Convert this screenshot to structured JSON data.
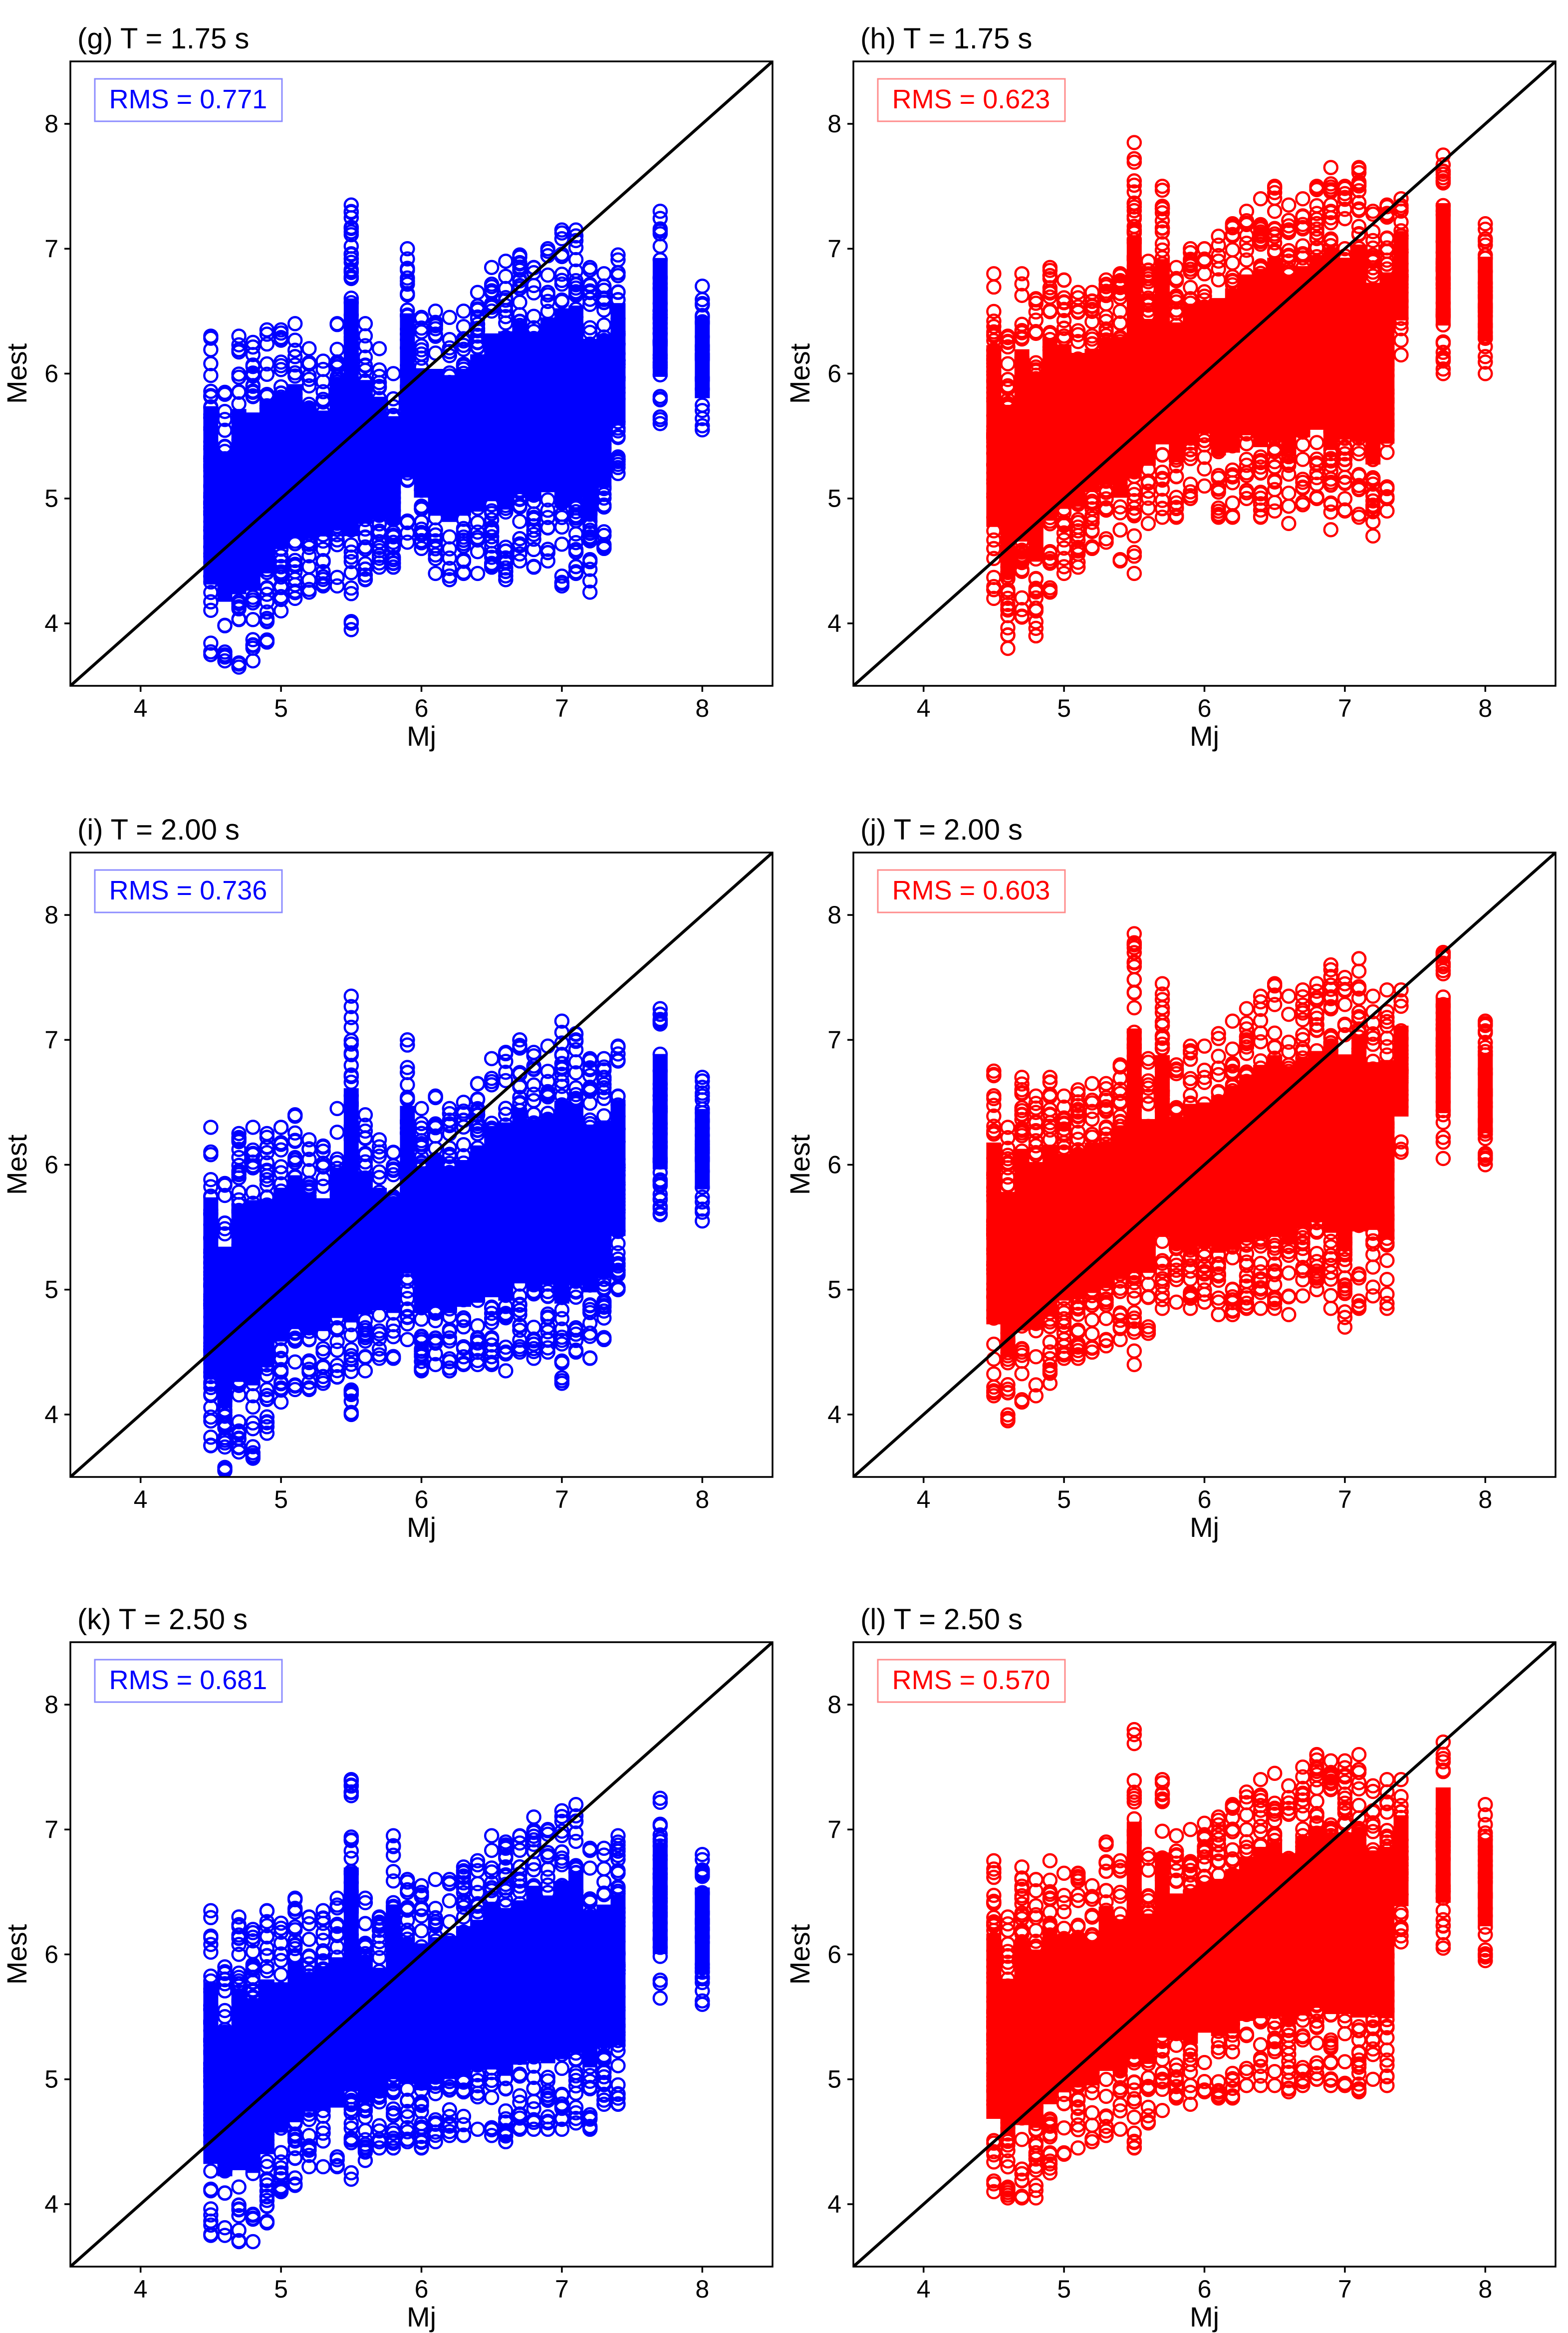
{
  "chart_data": [
    {
      "type": "scatter",
      "title": "(g) T = 1.75 s",
      "xlabel": "Mj",
      "ylabel": "Mest",
      "xlim": [
        3.5,
        8.5
      ],
      "ylim": [
        3.5,
        8.5
      ],
      "xticks": [
        4,
        5,
        6,
        7,
        8
      ],
      "yticks": [
        4,
        5,
        6,
        7,
        8
      ],
      "annotation": "RMS = 0.771",
      "color": "#0000ff",
      "reference_line": {
        "x": [
          3.5,
          8.5
        ],
        "y": [
          3.5,
          8.5
        ]
      },
      "x": [
        4.5,
        4.6,
        4.7,
        4.8,
        4.9,
        5.0,
        5.1,
        5.2,
        5.3,
        5.4,
        5.5,
        5.6,
        5.7,
        5.8,
        5.9,
        6.0,
        6.1,
        6.2,
        6.3,
        6.4,
        6.5,
        6.6,
        6.7,
        6.8,
        6.9,
        7.0,
        7.1,
        7.2,
        7.3,
        7.4,
        7.7,
        8.0
      ],
      "y_min": [
        3.75,
        3.7,
        3.65,
        3.7,
        3.85,
        4.1,
        4.2,
        4.25,
        4.3,
        4.3,
        3.95,
        4.35,
        4.45,
        4.45,
        4.65,
        4.6,
        4.4,
        4.35,
        4.4,
        4.4,
        4.45,
        4.35,
        4.5,
        4.45,
        4.5,
        4.3,
        4.4,
        4.25,
        4.6,
        5.2,
        5.6,
        5.55
      ],
      "y_max": [
        6.3,
        5.85,
        6.3,
        6.25,
        6.35,
        6.35,
        6.4,
        6.2,
        6.1,
        6.4,
        7.35,
        6.4,
        6.2,
        6.0,
        7.0,
        6.45,
        6.5,
        6.45,
        6.5,
        6.65,
        6.85,
        6.9,
        6.95,
        6.85,
        7.0,
        7.15,
        7.15,
        6.85,
        6.8,
        6.95,
        7.3,
        6.7
      ]
    },
    {
      "type": "scatter",
      "title": "(h) T = 1.75 s",
      "xlabel": "Mj",
      "ylabel": "Mest",
      "xlim": [
        3.5,
        8.5
      ],
      "ylim": [
        3.5,
        8.5
      ],
      "xticks": [
        4,
        5,
        6,
        7,
        8
      ],
      "yticks": [
        4,
        5,
        6,
        7,
        8
      ],
      "annotation": "RMS = 0.623",
      "color": "#ff0000",
      "reference_line": {
        "x": [
          3.5,
          8.5
        ],
        "y": [
          3.5,
          8.5
        ]
      },
      "x": [
        4.5,
        4.6,
        4.7,
        4.8,
        4.9,
        5.0,
        5.1,
        5.2,
        5.3,
        5.4,
        5.5,
        5.6,
        5.7,
        5.8,
        5.9,
        6.0,
        6.1,
        6.2,
        6.3,
        6.4,
        6.5,
        6.6,
        6.7,
        6.8,
        6.9,
        7.0,
        7.1,
        7.2,
        7.3,
        7.4,
        7.7,
        8.0
      ],
      "y_min": [
        4.2,
        3.8,
        4.05,
        3.9,
        4.25,
        4.4,
        4.45,
        4.6,
        4.65,
        4.5,
        4.4,
        4.8,
        4.85,
        4.85,
        5.0,
        5.1,
        4.85,
        4.85,
        5.0,
        4.85,
        4.9,
        4.8,
        4.95,
        5.0,
        4.75,
        4.9,
        4.85,
        4.7,
        4.9,
        6.15,
        6.0,
        6.0
      ],
      "y_max": [
        6.8,
        6.3,
        6.8,
        6.6,
        6.85,
        6.75,
        6.65,
        6.65,
        6.75,
        6.8,
        7.85,
        6.9,
        7.5,
        6.85,
        7.0,
        7.0,
        7.1,
        7.2,
        7.3,
        7.4,
        7.5,
        7.35,
        7.4,
        7.5,
        7.65,
        7.5,
        7.65,
        7.3,
        7.35,
        7.4,
        7.75,
        7.2
      ]
    },
    {
      "type": "scatter",
      "title": "(i) T = 2.00 s",
      "xlabel": "Mj",
      "ylabel": "Mest",
      "xlim": [
        3.5,
        8.5
      ],
      "ylim": [
        3.5,
        8.5
      ],
      "xticks": [
        4,
        5,
        6,
        7,
        8
      ],
      "yticks": [
        4,
        5,
        6,
        7,
        8
      ],
      "annotation": "RMS = 0.736",
      "color": "#0000ff",
      "reference_line": {
        "x": [
          3.5,
          8.5
        ],
        "y": [
          3.5,
          8.5
        ]
      },
      "x": [
        4.5,
        4.6,
        4.7,
        4.8,
        4.9,
        5.0,
        5.1,
        5.2,
        5.3,
        5.4,
        5.5,
        5.6,
        5.7,
        5.8,
        5.9,
        6.0,
        6.1,
        6.2,
        6.3,
        6.4,
        6.5,
        6.6,
        6.7,
        6.8,
        6.9,
        7.0,
        7.1,
        7.2,
        7.3,
        7.4,
        7.7,
        8.0
      ],
      "y_min": [
        3.75,
        3.55,
        3.7,
        3.65,
        3.85,
        4.1,
        4.2,
        4.2,
        4.25,
        4.3,
        4.0,
        4.35,
        4.45,
        4.45,
        4.6,
        4.35,
        4.4,
        4.35,
        4.4,
        4.4,
        4.4,
        4.35,
        4.5,
        4.45,
        4.5,
        4.25,
        4.5,
        4.45,
        4.6,
        5.0,
        5.6,
        5.55
      ],
      "y_max": [
        6.3,
        5.85,
        6.25,
        6.3,
        6.25,
        6.3,
        6.4,
        6.2,
        6.15,
        6.45,
        7.35,
        6.4,
        6.2,
        6.1,
        7.0,
        6.45,
        6.55,
        6.45,
        6.5,
        6.65,
        6.85,
        6.9,
        7.0,
        6.9,
        6.95,
        7.15,
        7.05,
        6.85,
        6.85,
        6.95,
        7.25,
        6.7
      ]
    },
    {
      "type": "scatter",
      "title": "(j) T = 2.00 s",
      "xlabel": "Mj",
      "ylabel": "Mest",
      "xlim": [
        3.5,
        8.5
      ],
      "ylim": [
        3.5,
        8.5
      ],
      "xticks": [
        4,
        5,
        6,
        7,
        8
      ],
      "yticks": [
        4,
        5,
        6,
        7,
        8
      ],
      "annotation": "RMS = 0.603",
      "color": "#ff0000",
      "reference_line": {
        "x": [
          3.5,
          8.5
        ],
        "y": [
          3.5,
          8.5
        ]
      },
      "x": [
        4.5,
        4.6,
        4.7,
        4.8,
        4.9,
        5.0,
        5.1,
        5.2,
        5.3,
        5.4,
        5.5,
        5.6,
        5.7,
        5.8,
        5.9,
        6.0,
        6.1,
        6.2,
        6.3,
        6.4,
        6.5,
        6.6,
        6.7,
        6.8,
        6.9,
        7.0,
        7.1,
        7.2,
        7.3,
        7.4,
        7.7,
        8.0
      ],
      "y_min": [
        4.15,
        3.95,
        4.1,
        4.15,
        4.25,
        4.45,
        4.45,
        4.5,
        4.55,
        4.6,
        4.4,
        4.65,
        4.85,
        4.9,
        4.85,
        4.9,
        4.8,
        4.8,
        4.85,
        4.85,
        4.85,
        4.8,
        4.95,
        5.0,
        4.85,
        4.7,
        4.85,
        4.95,
        4.85,
        6.1,
        6.05,
        6.0
      ],
      "y_max": [
        6.75,
        6.3,
        6.7,
        6.55,
        6.7,
        6.55,
        6.6,
        6.65,
        6.65,
        6.8,
        7.85,
        6.85,
        7.45,
        6.8,
        6.95,
        6.95,
        7.05,
        7.15,
        7.25,
        7.35,
        7.45,
        7.35,
        7.4,
        7.45,
        7.6,
        7.5,
        7.65,
        7.35,
        7.4,
        7.4,
        7.7,
        7.15
      ]
    },
    {
      "type": "scatter",
      "title": "(k) T = 2.50 s",
      "xlabel": "Mj",
      "ylabel": "Mest",
      "xlim": [
        3.5,
        8.5
      ],
      "ylim": [
        3.5,
        8.5
      ],
      "xticks": [
        4,
        5,
        6,
        7,
        8
      ],
      "yticks": [
        4,
        5,
        6,
        7,
        8
      ],
      "annotation": "RMS = 0.681",
      "color": "#0000ff",
      "reference_line": {
        "x": [
          3.5,
          8.5
        ],
        "y": [
          3.5,
          8.5
        ]
      },
      "x": [
        4.5,
        4.6,
        4.7,
        4.8,
        4.9,
        5.0,
        5.1,
        5.2,
        5.3,
        5.4,
        5.5,
        5.6,
        5.7,
        5.8,
        5.9,
        6.0,
        6.1,
        6.2,
        6.3,
        6.4,
        6.5,
        6.6,
        6.7,
        6.8,
        6.9,
        7.0,
        7.1,
        7.2,
        7.3,
        7.4,
        7.7,
        8.0
      ],
      "y_min": [
        3.75,
        3.75,
        3.7,
        3.7,
        3.85,
        4.1,
        4.15,
        4.3,
        4.3,
        4.3,
        4.2,
        4.35,
        4.45,
        4.45,
        4.5,
        4.45,
        4.5,
        4.55,
        4.55,
        4.6,
        4.55,
        4.5,
        4.6,
        4.6,
        4.6,
        4.6,
        4.65,
        4.6,
        4.8,
        4.8,
        5.65,
        5.6
      ],
      "y_max": [
        6.35,
        5.9,
        6.3,
        6.2,
        6.35,
        6.25,
        6.45,
        6.3,
        6.35,
        6.45,
        7.4,
        6.45,
        6.3,
        6.95,
        6.6,
        6.55,
        6.6,
        6.6,
        6.7,
        6.75,
        6.95,
        6.9,
        6.95,
        7.1,
        7.0,
        7.15,
        7.2,
        6.85,
        6.85,
        6.95,
        7.25,
        6.8
      ]
    },
    {
      "type": "scatter",
      "title": "(l) T = 2.50 s",
      "xlabel": "Mj",
      "ylabel": "Mest",
      "xlim": [
        3.5,
        8.5
      ],
      "ylim": [
        3.5,
        8.5
      ],
      "xticks": [
        4,
        5,
        6,
        7,
        8
      ],
      "yticks": [
        4,
        5,
        6,
        7,
        8
      ],
      "annotation": "RMS = 0.570",
      "color": "#ff0000",
      "reference_line": {
        "x": [
          3.5,
          8.5
        ],
        "y": [
          3.5,
          8.5
        ]
      },
      "x": [
        4.5,
        4.6,
        4.7,
        4.8,
        4.9,
        5.0,
        5.1,
        5.2,
        5.3,
        5.4,
        5.5,
        5.6,
        5.7,
        5.8,
        5.9,
        6.0,
        6.1,
        6.2,
        6.3,
        6.4,
        6.5,
        6.6,
        6.7,
        6.8,
        6.9,
        7.0,
        7.1,
        7.2,
        7.3,
        7.4,
        7.7,
        8.0
      ],
      "y_min": [
        4.1,
        4.05,
        4.05,
        4.05,
        4.25,
        4.4,
        4.45,
        4.5,
        4.55,
        4.6,
        4.45,
        4.65,
        4.75,
        4.85,
        4.8,
        4.9,
        4.85,
        4.85,
        4.95,
        4.95,
        4.95,
        4.9,
        4.95,
        5.0,
        4.95,
        4.95,
        4.9,
        5.0,
        4.95,
        6.1,
        6.05,
        5.95
      ],
      "y_max": [
        6.75,
        6.3,
        6.7,
        6.6,
        6.75,
        6.65,
        6.65,
        6.55,
        6.9,
        6.75,
        7.8,
        6.8,
        7.4,
        6.95,
        7.0,
        7.05,
        7.1,
        7.2,
        7.3,
        7.4,
        7.45,
        7.35,
        7.5,
        7.6,
        7.55,
        7.55,
        7.6,
        7.35,
        7.4,
        7.4,
        7.7,
        7.2
      ]
    }
  ]
}
